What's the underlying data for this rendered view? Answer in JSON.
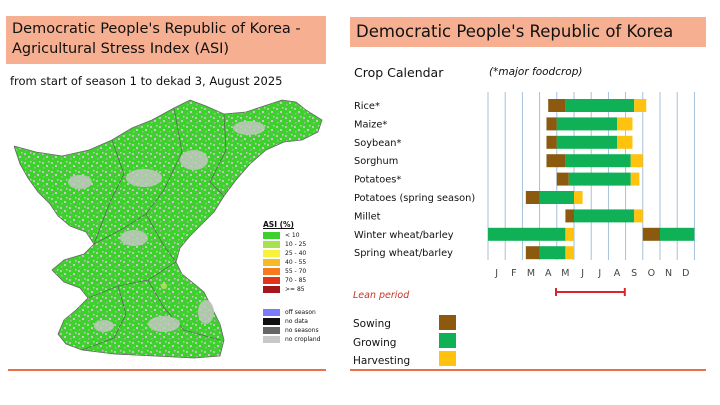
{
  "left_panel": {
    "title_line1": "Democratic People's Republic of Korea -",
    "title_line2": "Agricultural Stress Index (ASI)",
    "subtitle": "from start of season 1 to dekad 3, August  2025",
    "map_alt": "Map of DPR Korea showing ASI classes, mostly below 10 percent"
  },
  "asi_legend": {
    "title": "ASI (%)",
    "classes": [
      {
        "label": "< 10",
        "color": "#3ed12e"
      },
      {
        "label": "10 - 25",
        "color": "#a6e24e"
      },
      {
        "label": "25 - 40",
        "color": "#f7f23a"
      },
      {
        "label": "40 - 55",
        "color": "#f7b92a"
      },
      {
        "label": "55 - 70",
        "color": "#f57b1e"
      },
      {
        "label": "70 - 85",
        "color": "#e4331d"
      },
      {
        "label": ">= 85",
        "color": "#a4161a"
      }
    ],
    "special": [
      {
        "label": "off season",
        "color": "#7b7bff"
      },
      {
        "label": "no data",
        "color": "#111111"
      },
      {
        "label": "no seasons",
        "color": "#666666"
      },
      {
        "label": "no cropland",
        "color": "#c8c8c8"
      }
    ]
  },
  "right_panel": {
    "title": "Democratic People's Republic of Korea",
    "crop_calendar_label": "Crop Calendar",
    "major_note": "(*major foodcrop)",
    "lean_label": "Lean period",
    "key": [
      {
        "label": "Sowing",
        "color": "#8b5a0f"
      },
      {
        "label": "Growing",
        "color": "#10b156"
      },
      {
        "label": "Harvesting",
        "color": "#ffc20e"
      }
    ]
  },
  "chart_data": {
    "type": "gantt",
    "title": "Crop Calendar",
    "months": [
      "J",
      "F",
      "M",
      "A",
      "M",
      "J",
      "J",
      "A",
      "S",
      "O",
      "N",
      "D"
    ],
    "units": "month index (0 = start of January, 12 = end of December)",
    "crops": [
      {
        "name": "Rice*",
        "phases": [
          {
            "phase": "sowing",
            "start": 3.5,
            "end": 4.5
          },
          {
            "phase": "growing",
            "start": 4.5,
            "end": 8.5
          },
          {
            "phase": "harvesting",
            "start": 8.5,
            "end": 9.2
          }
        ]
      },
      {
        "name": "Maize*",
        "phases": [
          {
            "phase": "sowing",
            "start": 3.4,
            "end": 4.0
          },
          {
            "phase": "growing",
            "start": 4.0,
            "end": 7.5
          },
          {
            "phase": "harvesting",
            "start": 7.5,
            "end": 8.4
          }
        ]
      },
      {
        "name": "Soybean*",
        "phases": [
          {
            "phase": "sowing",
            "start": 3.4,
            "end": 4.0
          },
          {
            "phase": "growing",
            "start": 4.0,
            "end": 7.5
          },
          {
            "phase": "harvesting",
            "start": 7.5,
            "end": 8.4
          }
        ]
      },
      {
        "name": "Sorghum",
        "phases": [
          {
            "phase": "sowing",
            "start": 3.4,
            "end": 4.5
          },
          {
            "phase": "growing",
            "start": 4.5,
            "end": 8.3
          },
          {
            "phase": "harvesting",
            "start": 8.3,
            "end": 9.0
          }
        ]
      },
      {
        "name": "Potatoes*",
        "phases": [
          {
            "phase": "sowing",
            "start": 4.0,
            "end": 4.7
          },
          {
            "phase": "growing",
            "start": 4.7,
            "end": 8.3
          },
          {
            "phase": "harvesting",
            "start": 8.3,
            "end": 8.8
          }
        ]
      },
      {
        "name": "Potatoes (spring season)",
        "phases": [
          {
            "phase": "sowing",
            "start": 2.2,
            "end": 3.0
          },
          {
            "phase": "growing",
            "start": 3.0,
            "end": 5.0
          },
          {
            "phase": "harvesting",
            "start": 5.0,
            "end": 5.5
          }
        ]
      },
      {
        "name": "Millet",
        "phases": [
          {
            "phase": "sowing",
            "start": 4.5,
            "end": 5.0
          },
          {
            "phase": "growing",
            "start": 5.0,
            "end": 8.5
          },
          {
            "phase": "harvesting",
            "start": 8.5,
            "end": 9.0
          }
        ]
      },
      {
        "name": "Winter wheat/barley",
        "phases": [
          {
            "phase": "growing",
            "start": 0.0,
            "end": 4.5
          },
          {
            "phase": "harvesting",
            "start": 4.5,
            "end": 5.0
          },
          {
            "phase": "sowing",
            "start": 9.0,
            "end": 10.0
          },
          {
            "phase": "growing",
            "start": 10.0,
            "end": 12.0
          }
        ]
      },
      {
        "name": "Spring wheat/barley",
        "phases": [
          {
            "phase": "sowing",
            "start": 2.2,
            "end": 3.0
          },
          {
            "phase": "growing",
            "start": 3.0,
            "end": 4.5
          },
          {
            "phase": "harvesting",
            "start": 4.5,
            "end": 5.0
          }
        ]
      }
    ],
    "lean_period": {
      "start": 4.0,
      "end": 8.0
    }
  }
}
